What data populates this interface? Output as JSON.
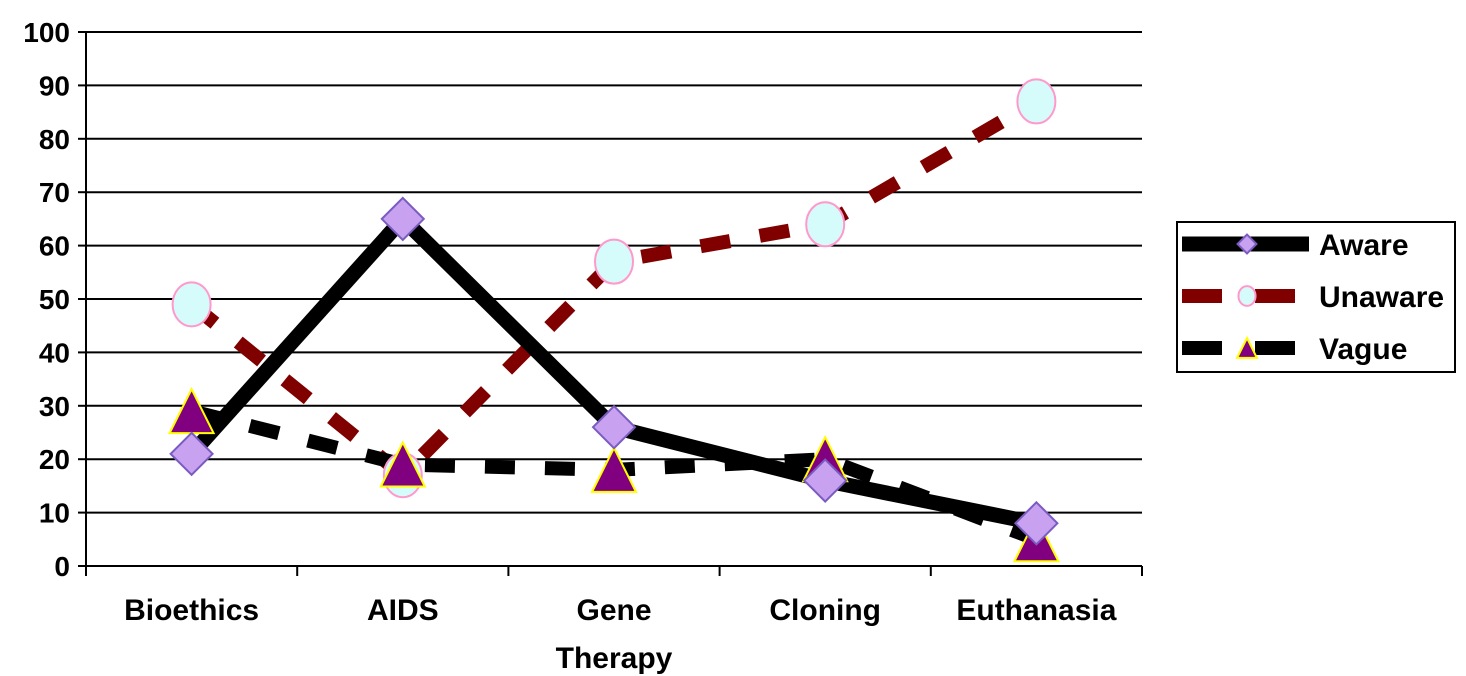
{
  "chart_data": {
    "type": "line",
    "categories": [
      "Bioethics",
      "AIDS",
      "Gene Therapy",
      "Cloning",
      "Euthanasia"
    ],
    "category_lines": [
      [
        "Bioethics"
      ],
      [
        "AIDS"
      ],
      [
        "Gene",
        "Therapy"
      ],
      [
        "Cloning"
      ],
      [
        "Euthanasia"
      ]
    ],
    "ylim": [
      0,
      100
    ],
    "yticks": [
      0,
      10,
      20,
      30,
      40,
      50,
      60,
      70,
      80,
      90,
      100
    ],
    "grid": true,
    "legend_position": "right",
    "series": [
      {
        "name": "Aware",
        "values": [
          21,
          65,
          26,
          16,
          8
        ],
        "line_color": "#000000",
        "line_style": "solid",
        "marker": "diamond",
        "marker_fill": "#c8a2f0",
        "marker_stroke": "#7a5cc0"
      },
      {
        "name": "Unaware",
        "values": [
          49,
          17,
          57,
          64,
          87
        ],
        "line_color": "#800000",
        "line_style": "dashed",
        "marker": "circle",
        "marker_fill": "#d6fbfb",
        "marker_stroke": "#ff99cc"
      },
      {
        "name": "Vague",
        "values": [
          29,
          19,
          18,
          20,
          5
        ],
        "line_color": "#000000",
        "line_style": "dashed",
        "marker": "triangle",
        "marker_fill": "#800080",
        "marker_stroke": "#ffff00"
      }
    ]
  }
}
